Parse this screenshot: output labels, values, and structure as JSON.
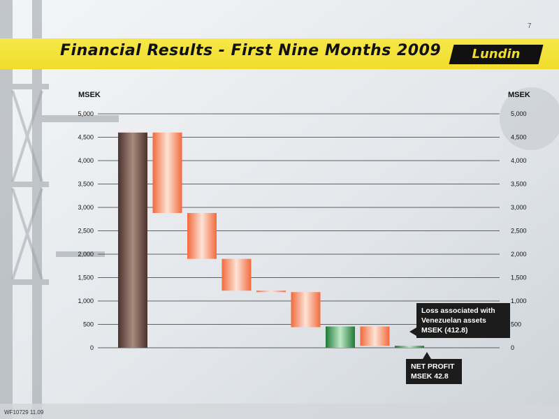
{
  "page": {
    "number": "7",
    "title": "Financial Results - First Nine Months 2009",
    "footer_code": "WF10729 11.09"
  },
  "logo": {
    "text": "Lundin"
  },
  "colors": {
    "band": "#f0dc2a",
    "brown": "#6b4f44",
    "orange": "#f58a63",
    "green": "#2e9a4a"
  },
  "chart_data": {
    "type": "bar",
    "subtype": "waterfall",
    "ylabel": "MSEK",
    "ylabel_right": "MSEK",
    "ylim": [
      0,
      5000
    ],
    "ticks": [
      "0",
      "500",
      "1,000",
      "1,500",
      "2,000",
      "2,500",
      "3,000",
      "3,500",
      "4,000",
      "4,500",
      "5,000"
    ],
    "grid": true,
    "bars": [
      {
        "start": 0,
        "end": 4600,
        "kind": "total"
      },
      {
        "start": 4600,
        "end": 2880,
        "kind": "decrease"
      },
      {
        "start": 2880,
        "end": 1900,
        "kind": "decrease"
      },
      {
        "start": 1900,
        "end": 1220,
        "kind": "decrease"
      },
      {
        "start": 1220,
        "end": 1190,
        "kind": "decrease"
      },
      {
        "start": 1190,
        "end": 440,
        "kind": "decrease"
      },
      {
        "start": 0,
        "end": 455,
        "kind": "subtotal"
      },
      {
        "start": 455,
        "end": 42.8,
        "kind": "decrease"
      },
      {
        "start": 0,
        "end": 42.8,
        "kind": "total"
      }
    ],
    "annotations": [
      {
        "text_lines": [
          "Loss associated with",
          "Venezuelan assets",
          "MSEK (412.8)"
        ]
      },
      {
        "text_lines": [
          "NET PROFIT",
          "MSEK 42.8"
        ]
      }
    ]
  }
}
